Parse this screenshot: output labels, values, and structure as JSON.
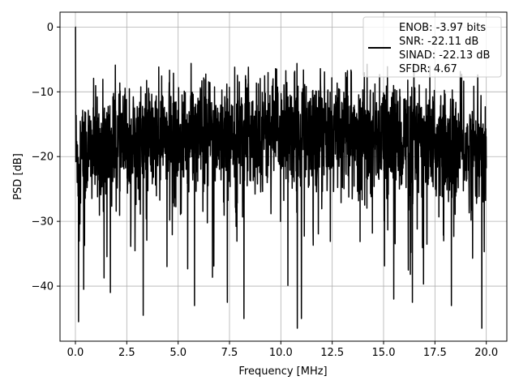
{
  "chart_data": {
    "type": "line",
    "title": "",
    "xlabel": "Frequency [MHz]",
    "ylabel": "PSD [dB]",
    "xlim": [
      -0.75,
      21.0
    ],
    "ylim": [
      -48.5,
      2.3
    ],
    "xticks": [
      0.0,
      2.5,
      5.0,
      7.5,
      10.0,
      12.5,
      15.0,
      17.5,
      20.0
    ],
    "xtick_labels": [
      "0.0",
      "2.5",
      "5.0",
      "7.5",
      "10.0",
      "12.5",
      "15.0",
      "17.5",
      "20.0"
    ],
    "yticks": [
      0,
      -10,
      -20,
      -30,
      -40
    ],
    "ytick_labels": [
      "0",
      "−10",
      "−20",
      "−30",
      "−40"
    ],
    "grid": true,
    "legend_position": "top-right",
    "series": [
      {
        "name": "ENOB: -3.97 bits\nSNR: -22.11 dB\nSINAD: -22.13 dB\nSFDR: 4.67",
        "color": "#000000",
        "description_note": "dense noise PSD spanning roughly -46 to -5.5 dB",
        "peaks": [
          {
            "x": 0.0,
            "y": 0.0
          },
          {
            "x": 0.15,
            "y": -45.5
          },
          {
            "x": 0.4,
            "y": -40.5
          },
          {
            "x": 1.7,
            "y": -41.0
          },
          {
            "x": 3.3,
            "y": -44.5
          },
          {
            "x": 5.8,
            "y": -43.0
          },
          {
            "x": 7.4,
            "y": -42.5
          },
          {
            "x": 8.2,
            "y": -45.0
          },
          {
            "x": 10.8,
            "y": -46.5
          },
          {
            "x": 11.0,
            "y": -45.0
          },
          {
            "x": 15.5,
            "y": -42.0
          },
          {
            "x": 16.4,
            "y": -42.5
          },
          {
            "x": 18.3,
            "y": -43.0
          }
        ]
      }
    ]
  },
  "legend": {
    "lines": [
      "ENOB: -3.97 bits",
      "SNR: -22.11 dB",
      "SINAD: -22.13 dB",
      "SFDR: 4.67"
    ]
  }
}
